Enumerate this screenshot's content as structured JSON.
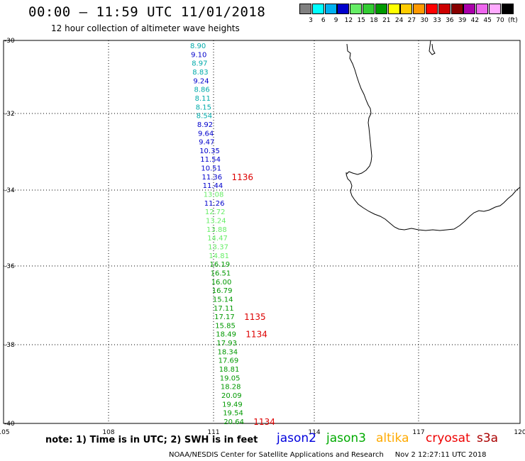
{
  "header": {
    "title": "00:00 – 11:59 UTC 11/01/2018",
    "subtitle": "12 hour collection of altimeter wave heights"
  },
  "scale": {
    "colors": [
      "#808080",
      "#00ffff",
      "#00b0f0",
      "#0000cc",
      "#66ee66",
      "#33cc33",
      "#009900",
      "#ffff00",
      "#ffcc00",
      "#ff9900",
      "#ff0000",
      "#cc0000",
      "#880000",
      "#aa00aa",
      "#ee66ee",
      "#ffaaff",
      "#000000"
    ],
    "labels": [
      "3",
      "6",
      "9",
      "12",
      "15",
      "18",
      "21",
      "24",
      "27",
      "30",
      "33",
      "36",
      "39",
      "42",
      "45",
      "70",
      "(ft)"
    ]
  },
  "axes": {
    "lon_ticks": [
      "105",
      "108",
      "111",
      "114",
      "117",
      "120"
    ],
    "lat_ticks": [
      "-30",
      "-32",
      "-34",
      "-36",
      "-38",
      "-40"
    ]
  },
  "track": {
    "values": [
      "8.90",
      "9.10",
      "8.97",
      "8.83",
      "9.24",
      "8.86",
      "8.11",
      "8.15",
      "8.54",
      "8.92",
      "9.64",
      "9.47",
      "10.35",
      "11.54",
      "10.51",
      "11.36",
      "11.44",
      "13.08",
      "11.26",
      "12.72",
      "13.24",
      "13.88",
      "14.47",
      "13.37",
      "14.81",
      "16.19",
      "16.51",
      "16.00",
      "16.79",
      "15.14",
      "17.11",
      "17.17",
      "15.85",
      "18.49",
      "17.93",
      "18.34",
      "17.69",
      "18.81",
      "19.05",
      "18.28",
      "20.09",
      "19.49",
      "19.54",
      "20.64"
    ],
    "colors": [
      "#00aaaa",
      "#0000cc",
      "#00aaaa",
      "#00aaaa",
      "#0000cc",
      "#00aaaa",
      "#00aaaa",
      "#00aaaa",
      "#00aaaa",
      "#0000cc",
      "#0000cc",
      "#0000cc",
      "#0000cc",
      "#0000cc",
      "#0000cc",
      "#0000cc",
      "#0000cc",
      "#66ee66",
      "#0000cc",
      "#66ee66",
      "#66ee66",
      "#66ee66",
      "#66ee66",
      "#66ee66",
      "#66ee66",
      "#009900",
      "#009900",
      "#009900",
      "#009900",
      "#009900",
      "#009900",
      "#009900",
      "#009900",
      "#009900",
      "#009900",
      "#009900",
      "#009900",
      "#009900",
      "#009900",
      "#009900",
      "#009900",
      "#009900",
      "#009900",
      "#009900"
    ]
  },
  "times": [
    {
      "label": "1136",
      "index": 15
    },
    {
      "label": "1135",
      "index": 31
    },
    {
      "label": "1134",
      "index": 33
    },
    {
      "label": "1134",
      "index": 43
    }
  ],
  "footer": {
    "note": "note: 1) Time is in UTC; 2) SWH is in feet",
    "satellites": [
      {
        "name": "jason2",
        "color": "#0000dd"
      },
      {
        "name": "jason3",
        "color": "#00aa00"
      },
      {
        "name": "altika",
        "color": "#ffaa00"
      },
      {
        "name": "cryosat",
        "color": "#ee0000"
      },
      {
        "name": "s3a",
        "color": "#aa0000"
      }
    ],
    "credit": "NOAA/NESDIS Center for Satellite Applications and Research",
    "timestamp": "Nov  2 12:27:11 UTC 2018"
  }
}
